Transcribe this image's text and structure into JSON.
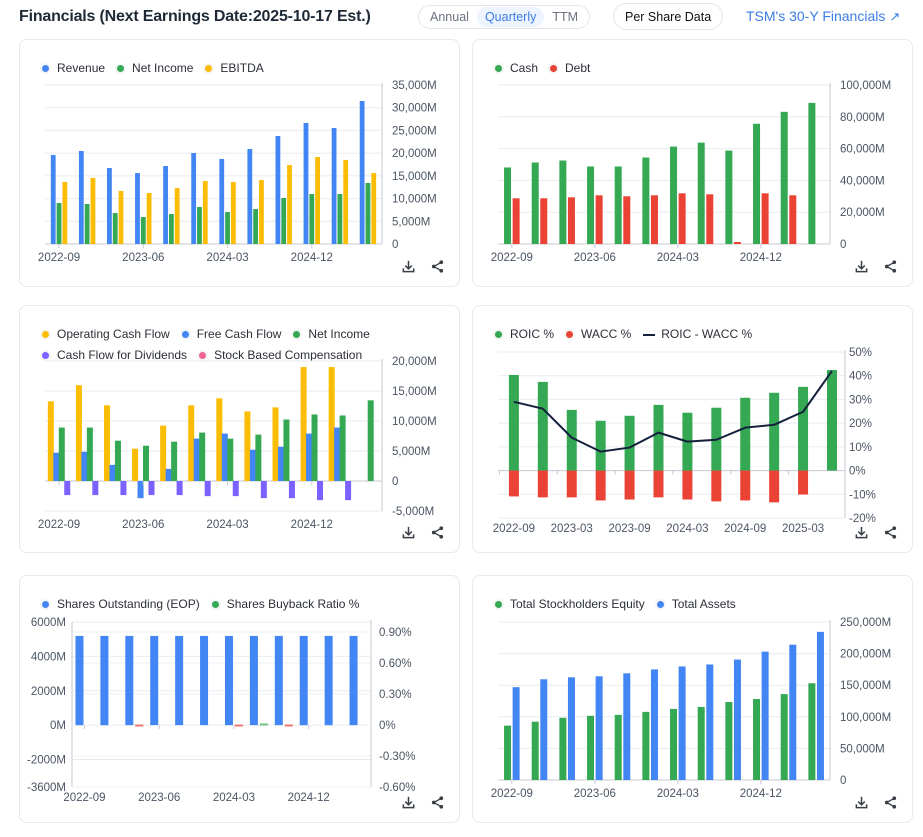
{
  "header": {
    "title": "Financials (Next Earnings Date:2025-10-17 Est.)",
    "period_tabs": [
      {
        "label": "Annual",
        "active": false
      },
      {
        "label": "Quarterly",
        "active": true
      },
      {
        "label": "TTM",
        "active": false
      }
    ],
    "per_share_label": "Per Share Data",
    "link_30y_label": "TSM's 30-Y Financials",
    "link_30y_icon": "arrow-up-right-icon"
  },
  "colors": {
    "blue": "#4285f4",
    "green": "#34a853",
    "yellow": "#fbbc05",
    "red": "#ea4335",
    "purple": "#7b61ff",
    "pink": "#f06292",
    "navy": "#14213d",
    "accent": "#3b7de6"
  },
  "card_tools": {
    "download_icon": "download-icon",
    "share_icon": "share-icon"
  },
  "chart_data": [
    {
      "id": "revenue",
      "type": "bar",
      "title": "",
      "legend": [
        {
          "name": "Revenue",
          "color": "#4285f4",
          "marker": "dot"
        },
        {
          "name": "Net Income",
          "color": "#34a853",
          "marker": "dot"
        },
        {
          "name": "EBITDA",
          "color": "#fbbc05",
          "marker": "dot"
        }
      ],
      "x_tick_labels": [
        "2022-09",
        "2023-06",
        "2024-03",
        "2024-12"
      ],
      "x_tick_indices": [
        0,
        3,
        6,
        9
      ],
      "y_ticks": [
        0,
        5000,
        10000,
        15000,
        20000,
        25000,
        30000,
        35000
      ],
      "y_tick_labels": [
        "0",
        "5,000M",
        "10,000M",
        "15,000M",
        "20,000M",
        "25,000M",
        "30,000M",
        "35,000M"
      ],
      "ylim": [
        0,
        35000
      ],
      "unit": "M",
      "categories": [
        "2022-09",
        "2022-12",
        "2023-03",
        "2023-06",
        "2023-09",
        "2023-12",
        "2024-03",
        "2024-06",
        "2024-09",
        "2024-12",
        "2025-03",
        "2025-06"
      ],
      "series": [
        {
          "name": "Revenue",
          "color": "#4285f4",
          "values": [
            19590,
            20470,
            16730,
            15630,
            17170,
            20030,
            18710,
            20910,
            23770,
            26640,
            25530,
            31480
          ]
        },
        {
          "name": "Net Income",
          "color": "#34a853",
          "values": [
            9020,
            8800,
            6820,
            5940,
            6600,
            8140,
            7040,
            7700,
            10130,
            11000,
            11000,
            13430
          ]
        },
        {
          "name": "EBITDA",
          "color": "#fbbc05",
          "values": [
            13650,
            14530,
            11670,
            11230,
            12330,
            13870,
            13650,
            14090,
            17390,
            19150,
            18490,
            15630
          ]
        }
      ]
    },
    {
      "id": "cashdebt",
      "type": "bar",
      "title": "",
      "legend": [
        {
          "name": "Cash",
          "color": "#34a853",
          "marker": "dot"
        },
        {
          "name": "Debt",
          "color": "#ea4335",
          "marker": "dot"
        }
      ],
      "x_tick_labels": [
        "2022-09",
        "2023-06",
        "2024-03",
        "2024-12"
      ],
      "x_tick_indices": [
        0,
        3,
        6,
        9
      ],
      "y_ticks": [
        0,
        20000,
        40000,
        60000,
        80000,
        100000
      ],
      "y_tick_labels": [
        "0",
        "20,000M",
        "40,000M",
        "60,000M",
        "80,000M",
        "100,000M"
      ],
      "ylim": [
        0,
        100000
      ],
      "unit": "M",
      "categories": [
        "2022-09",
        "2022-12",
        "2023-03",
        "2023-06",
        "2023-09",
        "2023-12",
        "2024-03",
        "2024-06",
        "2024-09",
        "2024-12",
        "2025-03",
        "2025-06"
      ],
      "series": [
        {
          "name": "Cash",
          "color": "#34a853",
          "values": [
            48125,
            51250,
            52500,
            48750,
            48750,
            54375,
            61250,
            63750,
            58750,
            75625,
            83125,
            88750
          ]
        },
        {
          "name": "Debt",
          "color": "#ea4335",
          "values": [
            28750,
            28750,
            29375,
            30625,
            30000,
            30625,
            31875,
            31250,
            1250,
            31875,
            30625,
            null
          ]
        }
      ]
    },
    {
      "id": "cashflow",
      "type": "bar",
      "title": "",
      "legend": [
        {
          "name": "Operating Cash Flow",
          "color": "#fbbc05",
          "marker": "dot"
        },
        {
          "name": "Free Cash Flow",
          "color": "#4285f4",
          "marker": "dot"
        },
        {
          "name": "Net Income",
          "color": "#34a853",
          "marker": "dot"
        },
        {
          "name": "Cash Flow for Dividends",
          "color": "#7b61ff",
          "marker": "dot"
        },
        {
          "name": "Stock Based Compensation",
          "color": "#f06292",
          "marker": "dot"
        }
      ],
      "legend_rows": [
        [
          0,
          1,
          2
        ],
        [
          3,
          4
        ]
      ],
      "x_tick_labels": [
        "2022-09",
        "2023-06",
        "2024-03",
        "2024-12"
      ],
      "x_tick_indices": [
        0,
        3,
        6,
        9
      ],
      "y_ticks": [
        -5000,
        0,
        5000,
        10000,
        15000,
        20000
      ],
      "y_tick_labels": [
        "-5,000M",
        "0",
        "5,000M",
        "10,000M",
        "15,000M",
        "20,000M"
      ],
      "ylim": [
        -5000,
        20000
      ],
      "unit": "M",
      "categories": [
        "2022-09",
        "2022-12",
        "2023-03",
        "2023-06",
        "2023-09",
        "2023-12",
        "2024-03",
        "2024-06",
        "2024-09",
        "2024-12",
        "2025-03",
        "2025-06"
      ],
      "series": [
        {
          "name": "Operating Cash Flow",
          "color": "#fbbc05",
          "values": [
            13280,
            15970,
            12610,
            5380,
            9240,
            12610,
            13780,
            11600,
            12270,
            18990,
            18990,
            null
          ]
        },
        {
          "name": "Free Cash Flow",
          "color": "#4285f4",
          "values": [
            4710,
            4870,
            2690,
            -2860,
            2020,
            7060,
            7900,
            5210,
            5710,
            7900,
            8910,
            null
          ]
        },
        {
          "name": "Net Income",
          "color": "#34a853",
          "values": [
            8910,
            8910,
            6720,
            5880,
            6550,
            8070,
            7060,
            7730,
            10250,
            11090,
            10920,
            13450
          ]
        },
        {
          "name": "Cash Flow for Dividends",
          "color": "#7b61ff",
          "values": [
            -2350,
            -2350,
            -2350,
            -2350,
            -2350,
            -2520,
            -2520,
            -2860,
            -2860,
            -3190,
            -3190,
            null
          ]
        },
        {
          "name": "Stock Based Compensation",
          "color": "#f06292",
          "values": [
            null,
            null,
            null,
            null,
            null,
            null,
            null,
            null,
            null,
            null,
            null,
            null
          ]
        }
      ]
    },
    {
      "id": "roic",
      "type": "bar",
      "title": "",
      "legend": [
        {
          "name": "ROIC %",
          "color": "#34a853",
          "marker": "dot"
        },
        {
          "name": "WACC %",
          "color": "#ea4335",
          "marker": "dot"
        },
        {
          "name": "ROIC - WACC %",
          "color": "#14213d",
          "marker": "line"
        }
      ],
      "x_tick_labels": [
        "2022-09",
        "2023-03",
        "2023-09",
        "2024-03",
        "2024-09",
        "2025-03"
      ],
      "x_tick_indices": [
        0,
        2,
        4,
        6,
        8,
        10
      ],
      "y_ticks": [
        -20,
        -10,
        0,
        10,
        20,
        30,
        40,
        50
      ],
      "y_tick_labels": [
        "-20%",
        "-10%",
        "0%",
        "10%",
        "20%",
        "30%",
        "40%",
        "50%"
      ],
      "ylim": [
        -20,
        50
      ],
      "unit": "%",
      "categories": [
        "2022-09",
        "2022-12",
        "2023-03",
        "2023-06",
        "2023-09",
        "2023-12",
        "2024-03",
        "2024-06",
        "2024-09",
        "2024-12",
        "2025-03",
        "2025-06"
      ],
      "series": [
        {
          "name": "ROIC %",
          "type": "bar",
          "color": "#34a853",
          "values": [
            40.3,
            37.4,
            25.6,
            21.0,
            23.1,
            27.7,
            24.4,
            26.5,
            30.7,
            32.8,
            35.3,
            42.4
          ]
        },
        {
          "name": "WACC %",
          "type": "bar",
          "color": "#ea4335",
          "values": [
            -10.9,
            -11.3,
            -11.3,
            -12.6,
            -12.2,
            -11.3,
            -12.2,
            -13.0,
            -12.6,
            -13.4,
            -10.1,
            null
          ]
        },
        {
          "name": "ROIC - WACC %",
          "type": "line",
          "color": "#14213d",
          "values": [
            29.0,
            26.1,
            13.9,
            8.0,
            9.7,
            16.0,
            12.2,
            13.0,
            18.1,
            19.3,
            24.8,
            42.0
          ]
        }
      ]
    },
    {
      "id": "shares",
      "type": "bar",
      "title": "",
      "legend": [
        {
          "name": "Shares Outstanding (EOP)",
          "color": "#4285f4",
          "marker": "dot"
        },
        {
          "name": "Shares Buyback Ratio %",
          "color": "#34a853",
          "marker": "dot"
        }
      ],
      "x_tick_labels": [
        "2022-09",
        "2023-06",
        "2024-03",
        "2024-12"
      ],
      "x_tick_indices": [
        0,
        3,
        6,
        9
      ],
      "y_ticks": [
        -3600,
        -2000,
        0,
        2000,
        4000,
        6000
      ],
      "y_tick_labels": [
        "-3600M",
        "-2000M",
        "0M",
        "2000M",
        "4000M",
        "6000M"
      ],
      "ylim": [
        -3600,
        6000
      ],
      "y2_ticks": [
        -0.6,
        -0.3,
        0,
        0.3,
        0.6,
        0.9
      ],
      "y2_tick_labels": [
        "-0.60%",
        "-0.30%",
        "0%",
        "0.30%",
        "0.60%",
        "0.90%"
      ],
      "y2lim": [
        -0.6,
        0.9
      ],
      "unit": "M",
      "categories": [
        "2022-09",
        "2022-12",
        "2023-03",
        "2023-06",
        "2023-09",
        "2023-12",
        "2024-03",
        "2024-06",
        "2024-09",
        "2024-12",
        "2025-03",
        "2025-06"
      ],
      "series": [
        {
          "name": "Shares Outstanding (EOP)",
          "color": "#4285f4",
          "axis": "left",
          "values": [
            5190,
            5190,
            5190,
            5190,
            5190,
            5190,
            5190,
            5190,
            5190,
            5190,
            5190,
            5190
          ]
        },
        {
          "name": "Shares Buyback Ratio %",
          "color": "#34a853",
          "neg_color": "#ea4335",
          "axis": "right",
          "values": [
            0,
            0,
            -0.01,
            0,
            0,
            0,
            -0.01,
            0.01,
            -0.01,
            0,
            0,
            0
          ]
        }
      ]
    },
    {
      "id": "equity",
      "type": "bar",
      "title": "",
      "legend": [
        {
          "name": "Total Stockholders Equity",
          "color": "#34a853",
          "marker": "dot"
        },
        {
          "name": "Total Assets",
          "color": "#4285f4",
          "marker": "dot"
        }
      ],
      "x_tick_labels": [
        "2022-09",
        "2023-06",
        "2024-03",
        "2024-12"
      ],
      "x_tick_indices": [
        0,
        3,
        6,
        9
      ],
      "y_ticks": [
        0,
        50000,
        100000,
        150000,
        200000,
        250000
      ],
      "y_tick_labels": [
        "0",
        "50,000M",
        "100,000M",
        "150,000M",
        "200,000M",
        "250,000M"
      ],
      "ylim": [
        0,
        250000
      ],
      "unit": "M",
      "categories": [
        "2022-09",
        "2022-12",
        "2023-03",
        "2023-06",
        "2023-09",
        "2023-12",
        "2024-03",
        "2024-06",
        "2024-09",
        "2024-12",
        "2025-03",
        "2025-06"
      ],
      "series": [
        {
          "name": "Total Stockholders Equity",
          "color": "#34a853",
          "values": [
            86000,
            92200,
            98400,
            101600,
            103100,
            107800,
            112500,
            115600,
            123400,
            128100,
            135900,
            153100
          ]
        },
        {
          "name": "Total Assets",
          "color": "#4285f4",
          "values": [
            146900,
            159400,
            162500,
            164100,
            168800,
            175000,
            179700,
            182800,
            190600,
            203100,
            214100,
            234400
          ]
        }
      ]
    }
  ]
}
